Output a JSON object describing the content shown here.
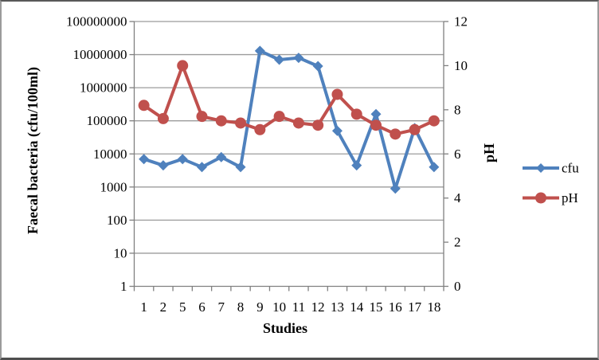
{
  "chart_data": {
    "type": "line",
    "title": "",
    "xlabel": "Studies",
    "ylabel_left": "Faecal bacteria (cfu/100ml)",
    "ylabel_right": "pH",
    "categories": [
      "1",
      "2",
      "5",
      "6",
      "7",
      "8",
      "9",
      "10",
      "11",
      "12",
      "13",
      "14",
      "15",
      "16",
      "17",
      "18"
    ],
    "series": [
      {
        "name": "cfu",
        "axis": "left",
        "color": "#4F81BD",
        "marker": "diamond",
        "values": [
          7000,
          4500,
          7000,
          4000,
          8000,
          4000,
          13000000,
          7000000,
          8000000,
          4500000,
          50000,
          4500,
          160000,
          900,
          60000,
          4000
        ]
      },
      {
        "name": "pH",
        "axis": "right",
        "color": "#C0504D",
        "marker": "circle",
        "values": [
          8.2,
          7.6,
          10.0,
          7.7,
          7.5,
          7.4,
          7.1,
          7.7,
          7.4,
          7.3,
          8.7,
          7.8,
          7.3,
          6.9,
          7.1,
          7.5
        ]
      }
    ],
    "left_axis": {
      "scale": "log",
      "min": 1,
      "max": 100000000,
      "ticks": [
        "1",
        "10",
        "100",
        "1000",
        "10000",
        "100000",
        "1000000",
        "10000000",
        "100000000"
      ]
    },
    "right_axis": {
      "scale": "linear",
      "min": 0,
      "max": 12,
      "tick_step": 2,
      "ticks": [
        "0",
        "2",
        "4",
        "6",
        "8",
        "10",
        "12"
      ]
    },
    "legend": {
      "position": "right",
      "entries": [
        "cfu",
        "pH"
      ]
    },
    "grid": "horizontal-major",
    "colors": {
      "gridline": "#9b9b9b",
      "axis": "#808080",
      "text": "#000000",
      "background": "#ffffff"
    }
  }
}
